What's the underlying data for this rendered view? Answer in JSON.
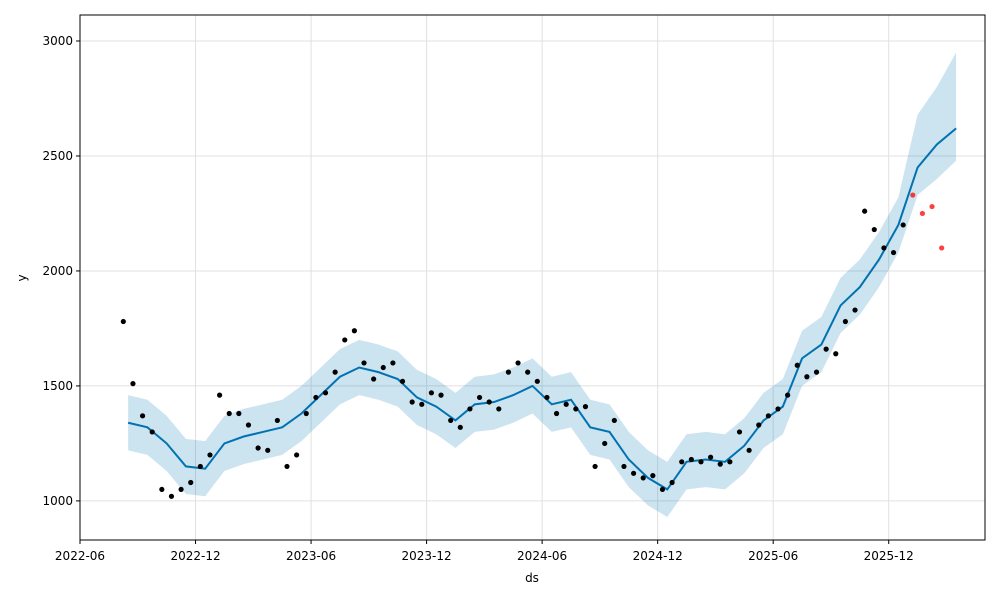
{
  "chart_data": {
    "type": "forecast",
    "xlabel": "ds",
    "ylabel": "y",
    "xlim": [
      "2022-06",
      "2026-05"
    ],
    "ylim": [
      830,
      3113
    ],
    "xticks": [
      "2022-06",
      "2022-12",
      "2023-06",
      "2023-12",
      "2024-06",
      "2024-12",
      "2025-06",
      "2025-12"
    ],
    "yticks": [
      1000,
      1500,
      2000,
      2500,
      3000
    ],
    "grid": true,
    "observed": {
      "color": "#000000",
      "x": [
        "2022-08",
        "2022-08",
        "2022-09",
        "2022-09",
        "2022-10",
        "2022-10",
        "2022-11",
        "2022-11",
        "2022-12",
        "2022-12",
        "2023-01",
        "2023-01",
        "2023-02",
        "2023-02",
        "2023-03",
        "2023-03",
        "2023-04",
        "2023-04",
        "2023-05",
        "2023-05",
        "2023-06",
        "2023-06",
        "2023-07",
        "2023-07",
        "2023-08",
        "2023-08",
        "2023-09",
        "2023-09",
        "2023-10",
        "2023-10",
        "2023-11",
        "2023-11",
        "2023-12",
        "2023-12",
        "2024-01",
        "2024-01",
        "2024-02",
        "2024-02",
        "2024-03",
        "2024-03",
        "2024-04",
        "2024-04",
        "2024-05",
        "2024-05",
        "2024-06",
        "2024-06",
        "2024-07",
        "2024-07",
        "2024-08",
        "2024-08",
        "2024-09",
        "2024-09",
        "2024-10",
        "2024-10",
        "2024-11",
        "2024-11",
        "2024-12",
        "2024-12",
        "2025-01",
        "2025-01",
        "2025-02",
        "2025-02",
        "2025-03",
        "2025-03",
        "2025-04",
        "2025-04",
        "2025-05",
        "2025-05",
        "2025-06",
        "2025-06",
        "2025-07",
        "2025-07",
        "2025-08",
        "2025-08",
        "2025-09",
        "2025-09",
        "2025-10",
        "2025-10",
        "2025-11",
        "2025-11",
        "2025-12",
        "2025-12"
      ],
      "values": [
        1780,
        1510,
        1370,
        1300,
        1050,
        1020,
        1050,
        1080,
        1150,
        1200,
        1460,
        1380,
        1380,
        1330,
        1230,
        1220,
        1350,
        1150,
        1200,
        1380,
        1450,
        1470,
        1560,
        1700,
        1740,
        1600,
        1530,
        1580,
        1600,
        1520,
        1430,
        1420,
        1470,
        1460,
        1350,
        1320,
        1400,
        1450,
        1430,
        1400,
        1560,
        1600,
        1560,
        1520,
        1450,
        1380,
        1420,
        1400,
        1410,
        1150,
        1250,
        1350,
        1150,
        1120,
        1100,
        1110,
        1050,
        1080,
        1170,
        1180,
        1170,
        1190,
        1160,
        1170,
        1300,
        1220,
        1330,
        1370,
        1400,
        1460,
        1590,
        1540,
        1560,
        1660,
        1640,
        1780,
        1830,
        2260,
        2180,
        2100,
        2080,
        2200
      ]
    },
    "actual": {
      "color": "#ff0000",
      "x": [
        "2026-01",
        "2026-01",
        "2026-02",
        "2026-02"
      ],
      "values": [
        2330,
        2250,
        2280,
        2100
      ]
    },
    "forecast": {
      "color": "#0072b2",
      "x": [
        "2022-08",
        "2022-09",
        "2022-10",
        "2022-11",
        "2022-12",
        "2023-01",
        "2023-02",
        "2023-03",
        "2023-04",
        "2023-05",
        "2023-06",
        "2023-07",
        "2023-08",
        "2023-09",
        "2023-10",
        "2023-11",
        "2023-12",
        "2024-01",
        "2024-02",
        "2024-03",
        "2024-04",
        "2024-05",
        "2024-06",
        "2024-07",
        "2024-08",
        "2024-09",
        "2024-10",
        "2024-11",
        "2024-12",
        "2025-01",
        "2025-02",
        "2025-03",
        "2025-04",
        "2025-05",
        "2025-06",
        "2025-07",
        "2025-08",
        "2025-09",
        "2025-10",
        "2025-11",
        "2025-12",
        "2026-01",
        "2026-02",
        "2026-03"
      ],
      "values": [
        1340,
        1320,
        1250,
        1150,
        1140,
        1250,
        1280,
        1300,
        1320,
        1380,
        1460,
        1540,
        1580,
        1560,
        1530,
        1450,
        1410,
        1350,
        1420,
        1430,
        1460,
        1500,
        1420,
        1440,
        1320,
        1300,
        1180,
        1100,
        1050,
        1170,
        1180,
        1170,
        1240,
        1350,
        1410,
        1620,
        1680,
        1850,
        1930,
        2050,
        2200,
        2450,
        2550,
        2620
      ],
      "lower": [
        1220,
        1200,
        1130,
        1030,
        1020,
        1130,
        1160,
        1180,
        1200,
        1260,
        1340,
        1420,
        1460,
        1440,
        1410,
        1330,
        1290,
        1230,
        1300,
        1310,
        1340,
        1380,
        1300,
        1320,
        1200,
        1180,
        1060,
        980,
        930,
        1050,
        1060,
        1050,
        1120,
        1230,
        1290,
        1500,
        1560,
        1730,
        1810,
        1930,
        2080,
        2330,
        2400,
        2480
      ],
      "upper": [
        1460,
        1440,
        1370,
        1270,
        1260,
        1370,
        1400,
        1420,
        1440,
        1500,
        1580,
        1660,
        1700,
        1680,
        1650,
        1570,
        1530,
        1470,
        1540,
        1550,
        1580,
        1620,
        1540,
        1560,
        1440,
        1420,
        1300,
        1220,
        1170,
        1290,
        1300,
        1290,
        1360,
        1470,
        1530,
        1740,
        1800,
        1970,
        2050,
        2170,
        2320,
        2680,
        2800,
        2950
      ]
    }
  }
}
